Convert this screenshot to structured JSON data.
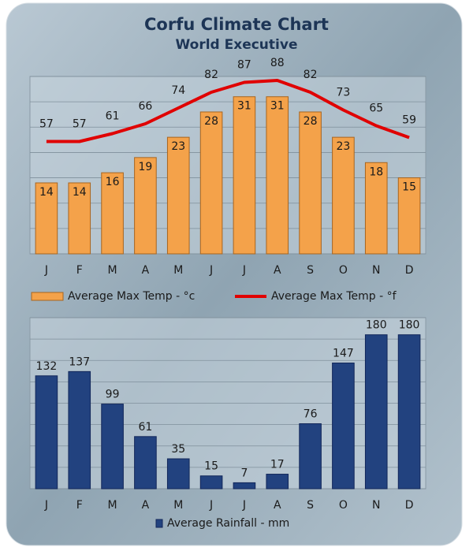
{
  "chart_data": [
    {
      "type": "bar",
      "title": "Corfu Climate Chart",
      "subtitle": "World Executive",
      "categories": [
        "J",
        "F",
        "M",
        "A",
        "M",
        "J",
        "J",
        "A",
        "S",
        "O",
        "N",
        "D"
      ],
      "series": [
        {
          "name": "Average Max Temp - °c",
          "color": "#f4a24a",
          "values": [
            14,
            14,
            16,
            19,
            23,
            28,
            31,
            31,
            28,
            23,
            18,
            15
          ]
        },
        {
          "name": "Average Max Temp - °f",
          "color": "#e00000",
          "type": "line",
          "axis": "y2",
          "values": [
            57,
            57,
            61,
            66,
            74,
            82,
            87,
            88,
            82,
            73,
            65,
            59
          ]
        }
      ],
      "ylim": [
        0,
        35
      ],
      "yticks": [
        0,
        5,
        10,
        15,
        20,
        25,
        30,
        35
      ],
      "y2lim": [
        0,
        90
      ],
      "grid": true,
      "legend": "bottom"
    },
    {
      "type": "bar",
      "categories": [
        "J",
        "F",
        "M",
        "A",
        "M",
        "J",
        "J",
        "A",
        "S",
        "O",
        "N",
        "D"
      ],
      "series": [
        {
          "name": "Average Rainfall - mm",
          "color": "#22427f",
          "values": [
            132,
            137,
            99,
            61,
            35,
            15,
            7,
            17,
            76,
            147,
            180,
            180
          ]
        }
      ],
      "ylim": [
        0,
        200
      ],
      "yticks": [
        0,
        25,
        50,
        75,
        100,
        125,
        150,
        175,
        200
      ],
      "grid": true,
      "legend": "bottom"
    }
  ]
}
